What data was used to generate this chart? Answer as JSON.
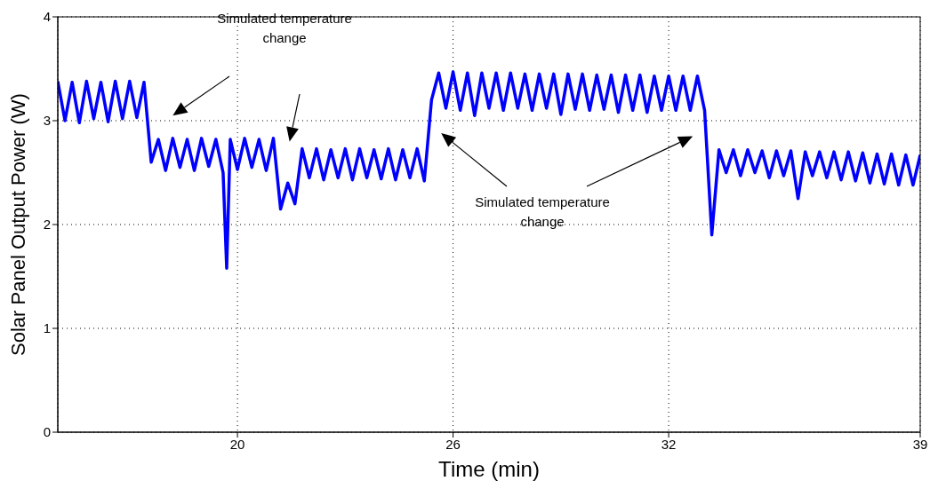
{
  "chart_data": {
    "type": "line",
    "xlabel": "Time (min)",
    "ylabel": "Solar Panel Output Power (W)",
    "xlim": [
      15,
      39
    ],
    "xticks": [
      20,
      26,
      32,
      39
    ],
    "ylim": [
      0,
      4
    ],
    "yticks": [
      0,
      1,
      2,
      3,
      4
    ],
    "grid": true,
    "annotations": [
      "Simulated temperature\nchange",
      "Simulated temperature\nchange"
    ],
    "series": [
      {
        "color": "#0000ff",
        "x": [
          15.0,
          15.2,
          15.4,
          15.6,
          15.8,
          16.0,
          16.2,
          16.4,
          16.6,
          16.8,
          17.0,
          17.2,
          17.4,
          17.6,
          17.8,
          18.0,
          18.2,
          18.4,
          18.6,
          18.8,
          19.0,
          19.2,
          19.4,
          19.6,
          19.7,
          19.8,
          20.0,
          20.2,
          20.4,
          20.6,
          20.8,
          21.0,
          21.2,
          21.4,
          21.6,
          21.8,
          22.0,
          22.2,
          22.4,
          22.6,
          22.8,
          23.0,
          23.2,
          23.4,
          23.6,
          23.8,
          24.0,
          24.2,
          24.4,
          24.6,
          24.8,
          25.0,
          25.2,
          25.4,
          25.6,
          25.8,
          26.0,
          26.2,
          26.4,
          26.6,
          26.8,
          27.0,
          27.2,
          27.4,
          27.6,
          27.8,
          28.0,
          28.2,
          28.4,
          28.6,
          28.8,
          29.0,
          29.2,
          29.4,
          29.6,
          29.8,
          30.0,
          30.2,
          30.4,
          30.6,
          30.8,
          31.0,
          31.2,
          31.4,
          31.6,
          31.8,
          32.0,
          32.2,
          32.4,
          32.6,
          32.8,
          33.0,
          33.2,
          33.4,
          33.6,
          33.8,
          34.0,
          34.2,
          34.4,
          34.6,
          34.8,
          35.0,
          35.2,
          35.4,
          35.6,
          35.8,
          36.0,
          36.2,
          36.4,
          36.6,
          36.8,
          37.0,
          37.2,
          37.4,
          37.6,
          37.8,
          38.0,
          38.2,
          38.4,
          38.6,
          38.8,
          39.0
        ],
        "values": [
          3.38,
          3.0,
          3.37,
          2.98,
          3.38,
          3.02,
          3.37,
          2.99,
          3.38,
          3.02,
          3.38,
          3.03,
          3.37,
          2.6,
          2.82,
          2.52,
          2.83,
          2.55,
          2.82,
          2.52,
          2.83,
          2.56,
          2.82,
          2.5,
          1.58,
          2.82,
          2.53,
          2.83,
          2.55,
          2.82,
          2.52,
          2.83,
          2.15,
          2.4,
          2.2,
          2.73,
          2.45,
          2.73,
          2.43,
          2.72,
          2.45,
          2.73,
          2.43,
          2.73,
          2.45,
          2.72,
          2.44,
          2.73,
          2.43,
          2.72,
          2.45,
          2.73,
          2.42,
          3.2,
          3.46,
          3.12,
          3.47,
          3.1,
          3.46,
          3.05,
          3.46,
          3.12,
          3.46,
          3.1,
          3.46,
          3.12,
          3.45,
          3.1,
          3.45,
          3.12,
          3.45,
          3.06,
          3.45,
          3.11,
          3.45,
          3.1,
          3.44,
          3.11,
          3.44,
          3.08,
          3.44,
          3.1,
          3.44,
          3.08,
          3.43,
          3.1,
          3.43,
          3.1,
          3.43,
          3.1,
          3.43,
          3.1,
          1.9,
          2.72,
          2.5,
          2.72,
          2.47,
          2.72,
          2.5,
          2.71,
          2.45,
          2.71,
          2.47,
          2.71,
          2.25,
          2.7,
          2.47,
          2.7,
          2.45,
          2.7,
          2.43,
          2.7,
          2.42,
          2.69,
          2.4,
          2.68,
          2.39,
          2.68,
          2.38,
          2.67,
          2.38,
          2.67
        ]
      }
    ]
  }
}
